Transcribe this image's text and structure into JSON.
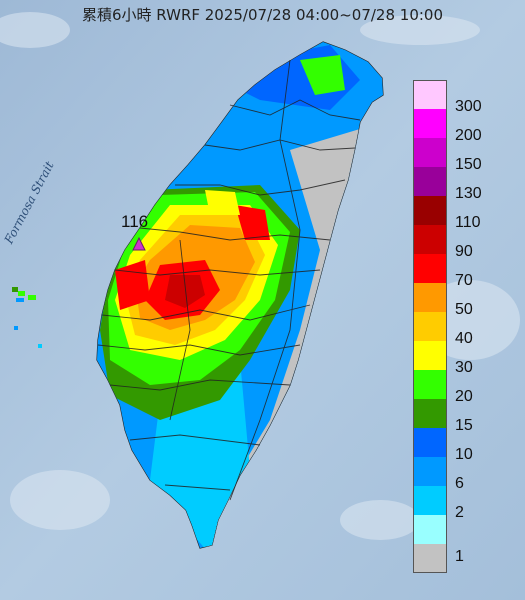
{
  "title": "累積6小時 RWRF 2025/07/28 04:00~07/28 10:00",
  "sea_label": "Formosa Strait",
  "max_station": {
    "value": "116",
    "marker": "triangle-marker",
    "color": "#cc33cc"
  },
  "legend": {
    "levels": [
      {
        "label": "300",
        "color": "#ffc8ff"
      },
      {
        "label": "200",
        "color": "#ff00ff"
      },
      {
        "label": "150",
        "color": "#cc00cc"
      },
      {
        "label": "130",
        "color": "#99009a"
      },
      {
        "label": "110",
        "color": "#990000"
      },
      {
        "label": "90",
        "color": "#cc0000"
      },
      {
        "label": "70",
        "color": "#ff0000"
      },
      {
        "label": "50",
        "color": "#ff9900"
      },
      {
        "label": "40",
        "color": "#ffcc00"
      },
      {
        "label": "30",
        "color": "#ffff00"
      },
      {
        "label": "20",
        "color": "#33ff00"
      },
      {
        "label": "15",
        "color": "#339900"
      },
      {
        "label": "10",
        "color": "#0066ff"
      },
      {
        "label": "6",
        "color": "#0099ff"
      },
      {
        "label": "2",
        "color": "#00ccff"
      },
      {
        "label": "1",
        "color": "#99ffff"
      },
      {
        "label": "",
        "color": "#c2c2c2"
      }
    ]
  },
  "colors": {
    "sea": "#a9c2dc",
    "land": "#c2c2c2"
  }
}
